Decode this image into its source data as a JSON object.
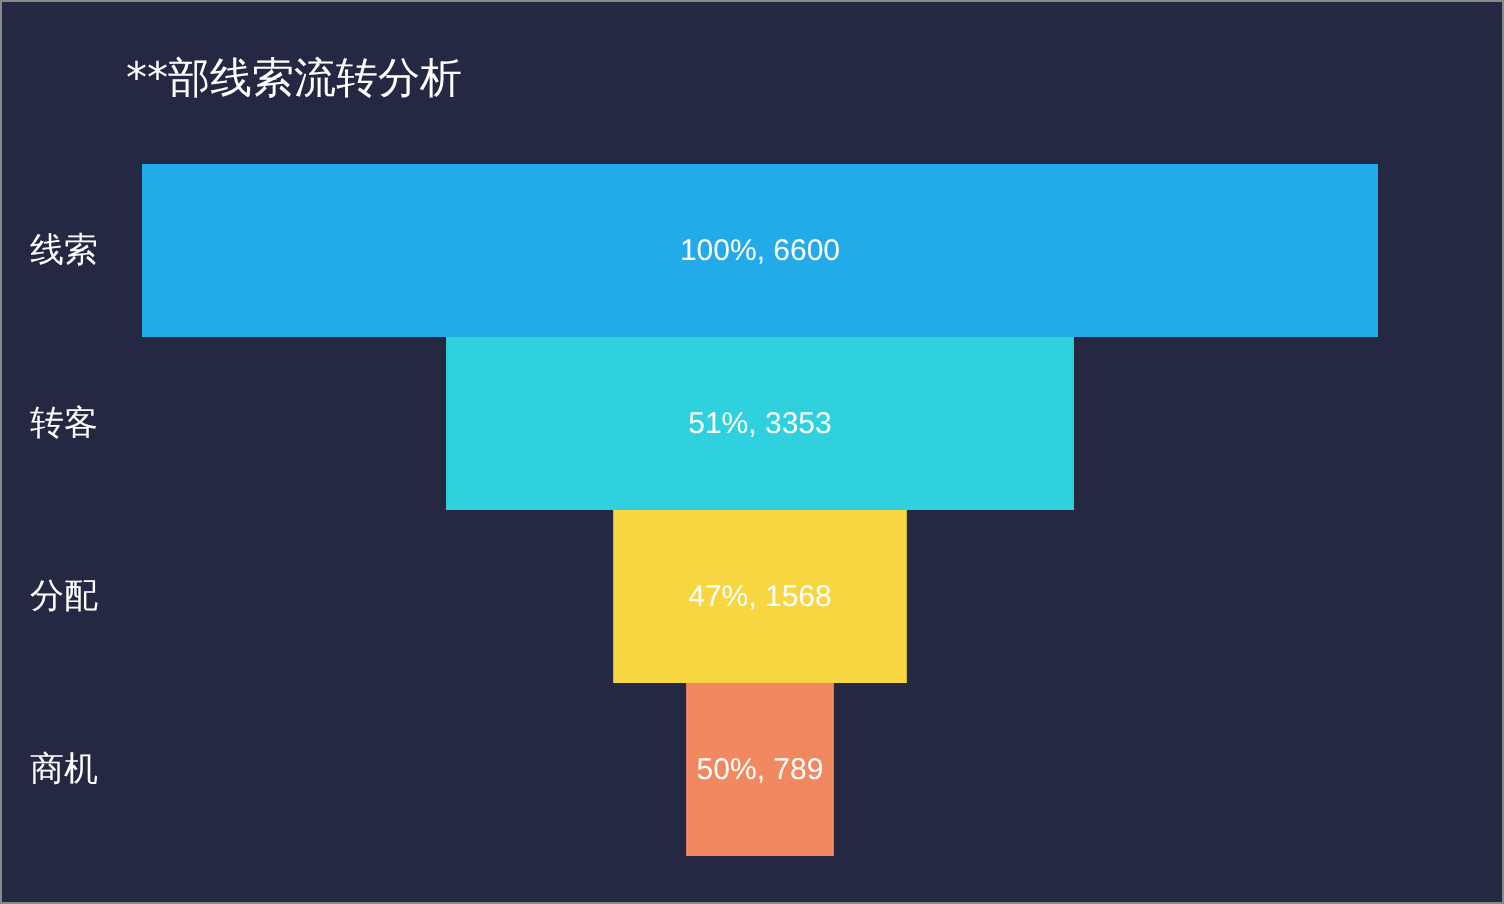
{
  "chart_data": {
    "type": "other",
    "title": "**部线索流转分析",
    "categories": [
      "线索",
      "转客",
      "分配",
      "商机"
    ],
    "values": [
      6600,
      3353,
      1568,
      789
    ],
    "value_labels": [
      "100%, 6600",
      "51%, 3353",
      "47%, 1568",
      "50%, 789"
    ],
    "colors": [
      "#23abe9",
      "#2ed1dd",
      "#f7d641",
      "#f2885f"
    ]
  }
}
